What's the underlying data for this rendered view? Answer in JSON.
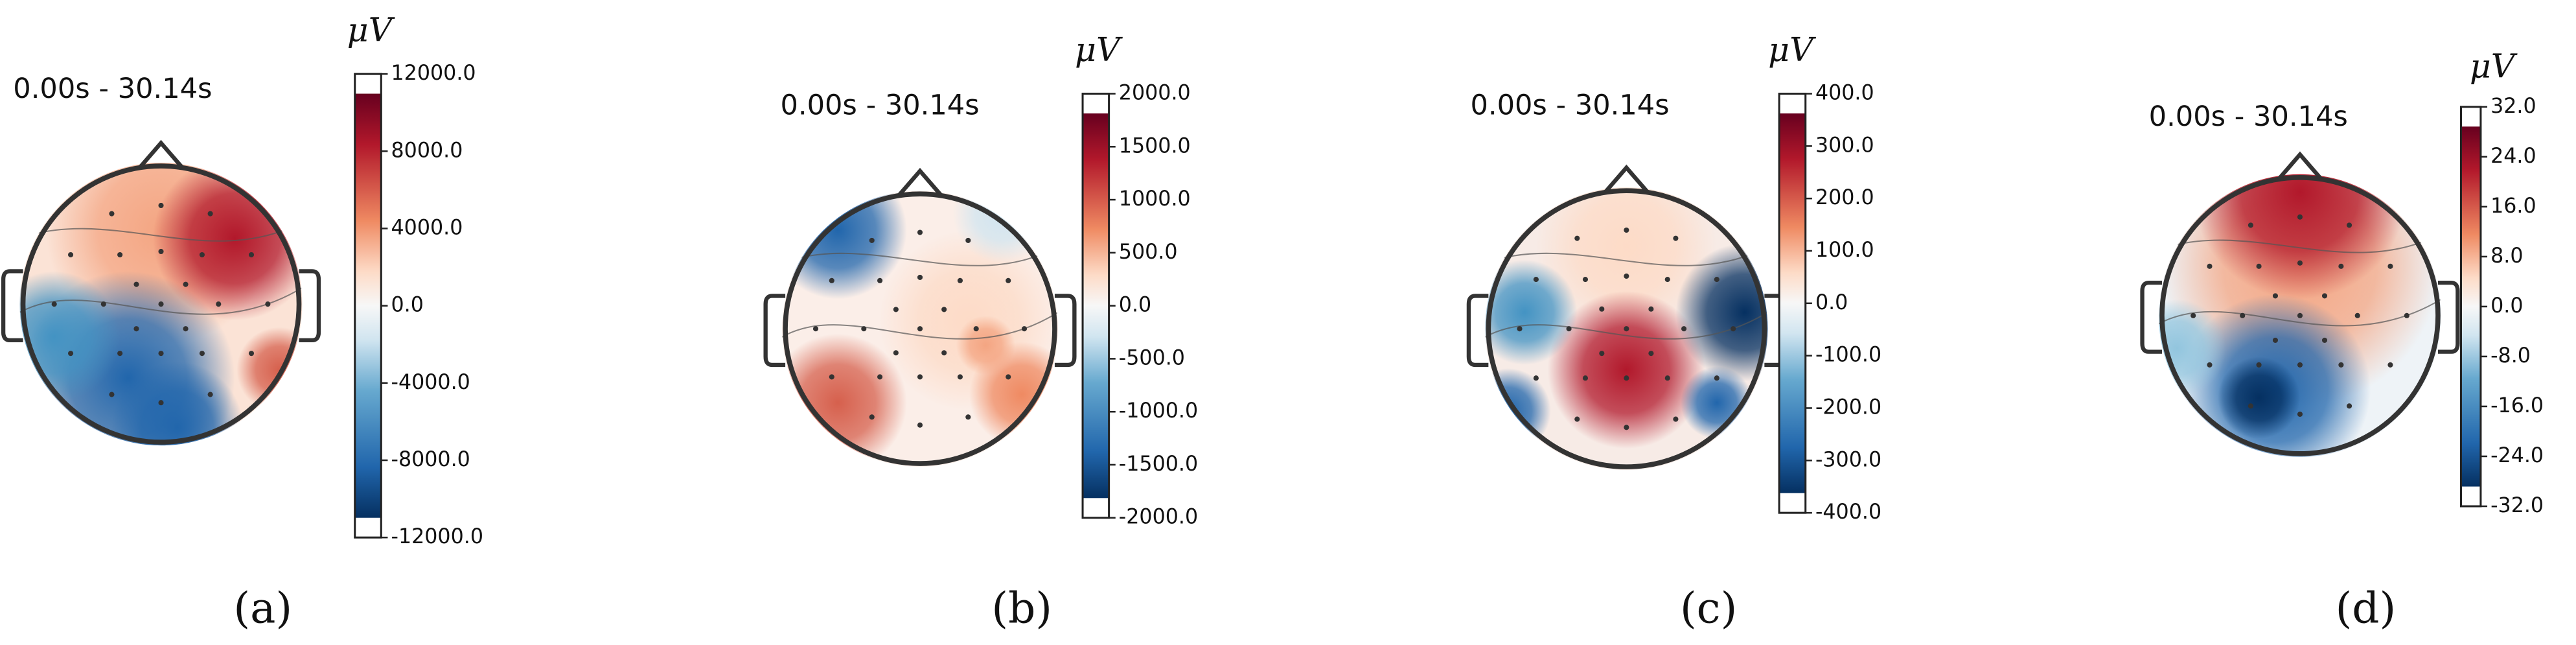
{
  "panels": [
    {
      "time_window": "0.00s - 30.14s",
      "unit": "μV",
      "caption": "(a)",
      "clim": [
        -12000,
        12000
      ],
      "ticks": [
        {
          "value": 12000,
          "label": "12000.0"
        },
        {
          "value": 8000,
          "label": "8000.0"
        },
        {
          "value": 4000,
          "label": "4000.0"
        },
        {
          "value": 0,
          "label": "0.0"
        },
        {
          "value": -4000,
          "label": "-4000.0"
        },
        {
          "value": -8000,
          "label": "-8000.0"
        },
        {
          "value": -12000,
          "label": "-12000.0"
        }
      ]
    },
    {
      "time_window": "0.00s - 30.14s",
      "unit": "μV",
      "caption": "(b)",
      "clim": [
        -2000,
        2000
      ],
      "ticks": [
        {
          "value": 2000,
          "label": "2000.0"
        },
        {
          "value": 1500,
          "label": "1500.0"
        },
        {
          "value": 1000,
          "label": "1000.0"
        },
        {
          "value": 500,
          "label": "500.0"
        },
        {
          "value": 0,
          "label": "0.0"
        },
        {
          "value": -500,
          "label": "-500.0"
        },
        {
          "value": -1000,
          "label": "-1000.0"
        },
        {
          "value": -1500,
          "label": "-1500.0"
        },
        {
          "value": -2000,
          "label": "-2000.0"
        }
      ]
    },
    {
      "time_window": "0.00s - 30.14s",
      "unit": "μV",
      "caption": "(c)",
      "clim": [
        -400,
        400
      ],
      "ticks": [
        {
          "value": 400,
          "label": "400.0"
        },
        {
          "value": 300,
          "label": "300.0"
        },
        {
          "value": 200,
          "label": "200.0"
        },
        {
          "value": 100,
          "label": "100.0"
        },
        {
          "value": 0,
          "label": "0.0"
        },
        {
          "value": -100,
          "label": "-100.0"
        },
        {
          "value": -200,
          "label": "-200.0"
        },
        {
          "value": -300,
          "label": "-300.0"
        },
        {
          "value": -400,
          "label": "-400.0"
        }
      ]
    },
    {
      "time_window": "0.00s - 30.14s",
      "unit": "μV",
      "caption": "(d)",
      "clim": [
        -32,
        32
      ],
      "ticks": [
        {
          "value": 32,
          "label": "32.0"
        },
        {
          "value": 24,
          "label": "24.0"
        },
        {
          "value": 16,
          "label": "16.0"
        },
        {
          "value": 8,
          "label": "8.0"
        },
        {
          "value": 0,
          "label": "0.0"
        },
        {
          "value": -8,
          "label": "-8.0"
        },
        {
          "value": -16,
          "label": "-16.0"
        },
        {
          "value": -24,
          "label": "-24.0"
        },
        {
          "value": -32,
          "label": "-32.0"
        }
      ]
    }
  ]
}
